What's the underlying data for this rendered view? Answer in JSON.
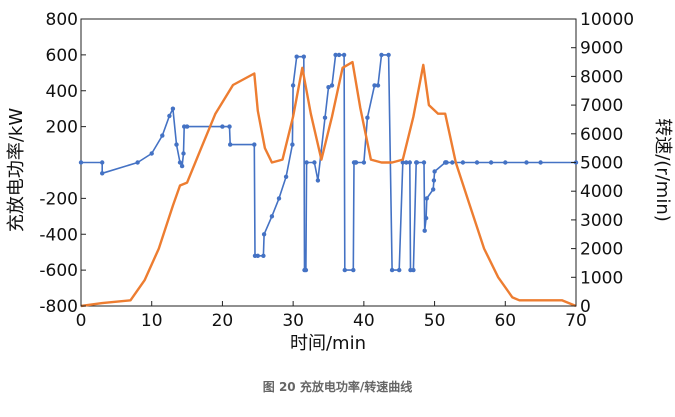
{
  "caption": "图 20   充放电功率/转速曲线",
  "chart_data": {
    "type": "line",
    "xlabel": "时间/min",
    "ylabel_left": "充放电功率/kW",
    "ylabel_right": "转速/(r/min)",
    "xlim": [
      0,
      70
    ],
    "ylim_left": [
      -800,
      800
    ],
    "ylim_right": [
      0,
      10000
    ],
    "x_ticks": [
      "0",
      "10",
      "20",
      "30",
      "40",
      "50",
      "60",
      "70"
    ],
    "y_ticks_left": [
      "-800",
      "-600",
      "-400",
      "-200",
      "200",
      "400",
      "600",
      "800"
    ],
    "y_ticks_right": [
      "0",
      "1000",
      "2000",
      "3000",
      "4000",
      "5000",
      "6000",
      "7000",
      "8000",
      "9000",
      "10000"
    ],
    "grid": false,
    "colors": {
      "power": "#4472c4",
      "speed": "#ed7d31"
    },
    "series": [
      {
        "id": "power",
        "axis": "left",
        "x": [
          0,
          3,
          3,
          8,
          10,
          11.5,
          12.5,
          13,
          13.5,
          14,
          14.3,
          14.5,
          14.6,
          15,
          20,
          21,
          21.1,
          24.5,
          24.6,
          25,
          25.8,
          25.9,
          27,
          28,
          29,
          29.9,
          30,
          30.5,
          31.5,
          31.6,
          31.8,
          31.9,
          33,
          33.5,
          34.5,
          35,
          35.5,
          36,
          36.5,
          37.2,
          37.3,
          38.5,
          38.6,
          38.8,
          38.9,
          40,
          40.5,
          41.5,
          42,
          42.5,
          43.5,
          44,
          45,
          45.5,
          46,
          46.5,
          46.6,
          47,
          47.4,
          47.5,
          48.5,
          48.6,
          48.8,
          48.9,
          49.8,
          49.9,
          50,
          51.5,
          51.6,
          51.7,
          52.5,
          54,
          56,
          58,
          60,
          63,
          65,
          70
        ],
        "y": [
          0,
          0,
          -60,
          0,
          50,
          150,
          260,
          300,
          100,
          0,
          -20,
          50,
          200,
          200,
          200,
          200,
          100,
          100,
          -520,
          -520,
          -520,
          -400,
          -300,
          -200,
          -80,
          100,
          430,
          590,
          590,
          -600,
          -600,
          0,
          0,
          -100,
          250,
          420,
          430,
          600,
          600,
          600,
          -600,
          -600,
          0,
          0,
          0,
          0,
          250,
          430,
          430,
          600,
          600,
          -600,
          -600,
          0,
          0,
          0,
          -600,
          -600,
          0,
          0,
          0,
          -380,
          -310,
          -200,
          -150,
          -100,
          -50,
          0,
          0,
          0,
          0,
          0,
          0,
          0,
          0,
          0,
          0,
          0
        ]
      },
      {
        "id": "speed",
        "axis": "right",
        "x": [
          0,
          3,
          7,
          9,
          11,
          13,
          14,
          15,
          17,
          19,
          21.5,
          24.5,
          25,
          26,
          27,
          28.5,
          30,
          31.3,
          32.5,
          34,
          35.5,
          37,
          38.4,
          39.5,
          41,
          42.5,
          44,
          45.5,
          47,
          48.4,
          49.2,
          50.5,
          51.5,
          53,
          55,
          57,
          59,
          61,
          62,
          65,
          68,
          70
        ],
        "y": [
          0,
          100,
          200,
          900,
          2000,
          3500,
          4200,
          4300,
          5500,
          6700,
          7700,
          8100,
          6800,
          5500,
          5000,
          5100,
          6600,
          8300,
          6700,
          5100,
          6600,
          8300,
          8500,
          6900,
          5100,
          5000,
          5000,
          5100,
          6600,
          8400,
          7000,
          6700,
          6700,
          5000,
          3500,
          2000,
          1000,
          300,
          200,
          200,
          200,
          0
        ]
      }
    ]
  }
}
